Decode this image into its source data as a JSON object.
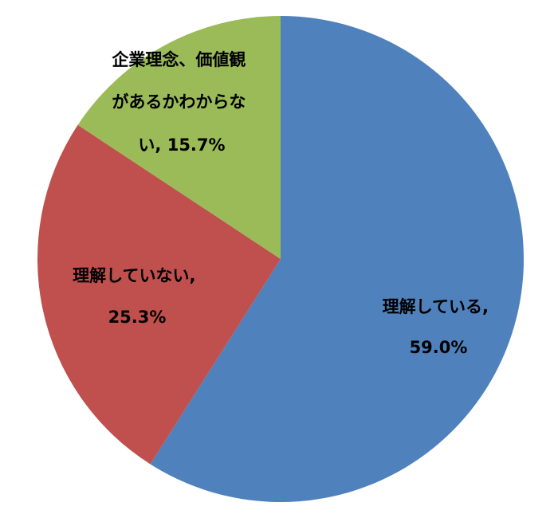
{
  "chart_data": {
    "type": "pie",
    "title": "",
    "legend": "none",
    "start": "12 o'clock",
    "direction": "clockwise",
    "slices": [
      {
        "label": "理解している",
        "value": 59.0,
        "value_text": "59.0%",
        "color": "#4f81bd",
        "label_lines": [
          "理解している,",
          "59.0%"
        ]
      },
      {
        "label": "理解していない",
        "value": 25.3,
        "value_text": "25.3%",
        "color": "#c0504d",
        "label_lines": [
          "理解していない,",
          "25.3%"
        ]
      },
      {
        "label": "企業理念、価値観があるかわからない",
        "value": 15.7,
        "value_text": "15.7%",
        "color": "#9bbb59",
        "label_lines": [
          "企業理念、価値観",
          "があるかわからな",
          "い, 15.7%"
        ]
      }
    ]
  }
}
